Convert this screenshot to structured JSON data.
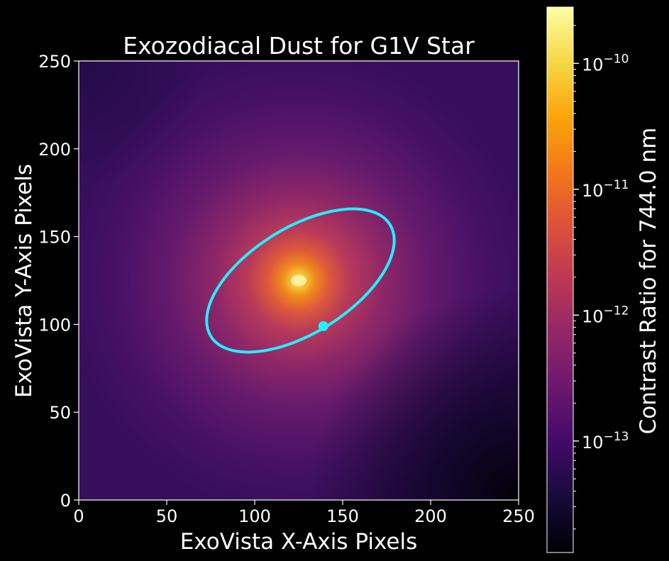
{
  "chart_data": {
    "type": "heatmap",
    "title": "Exozodiacal Dust for G1V Star",
    "xlabel": "ExoVista X-Axis Pixels",
    "ylabel": "ExoVista Y-Axis Pixels",
    "xlim": [
      0,
      250
    ],
    "ylim": [
      0,
      250
    ],
    "xticks": [
      0,
      50,
      100,
      150,
      200,
      250
    ],
    "yticks": [
      0,
      50,
      100,
      150,
      200,
      250
    ],
    "colormap": "inferno",
    "star_center": {
      "x": 125,
      "y": 125
    },
    "orbit": {
      "color": "#22f0ff",
      "center": {
        "x": 126,
        "y": 125
      },
      "semi_major": 60,
      "semi_minor": 30,
      "angle_deg": 32
    },
    "planet": {
      "x": 139,
      "y": 99,
      "color": "#22f0ff"
    },
    "colorbar": {
      "label": "Contrast Ratio for 744.0 nm",
      "scale": "log",
      "range": [
        1.3e-14,
        2.8e-10
      ],
      "major_ticks": [
        {
          "value": 1e-13,
          "base": "10",
          "exponent": "−13"
        },
        {
          "value": 1e-12,
          "base": "10",
          "exponent": "−12"
        },
        {
          "value": 1e-11,
          "base": "10",
          "exponent": "−11"
        },
        {
          "value": 1e-10,
          "base": "10",
          "exponent": "−10"
        }
      ],
      "minor_ticks": [
        2e-14,
        3e-14,
        4e-14,
        5e-14,
        6e-14,
        7e-14,
        8e-14,
        9e-14,
        2e-13,
        3e-13,
        4e-13,
        5e-13,
        6e-13,
        7e-13,
        8e-13,
        9e-13,
        2e-12,
        3e-12,
        4e-12,
        5e-12,
        6e-12,
        7e-12,
        8e-12,
        9e-12,
        2e-11,
        3e-11,
        4e-11,
        5e-11,
        6e-11,
        7e-11,
        8e-11,
        9e-11,
        2e-10
      ]
    }
  }
}
